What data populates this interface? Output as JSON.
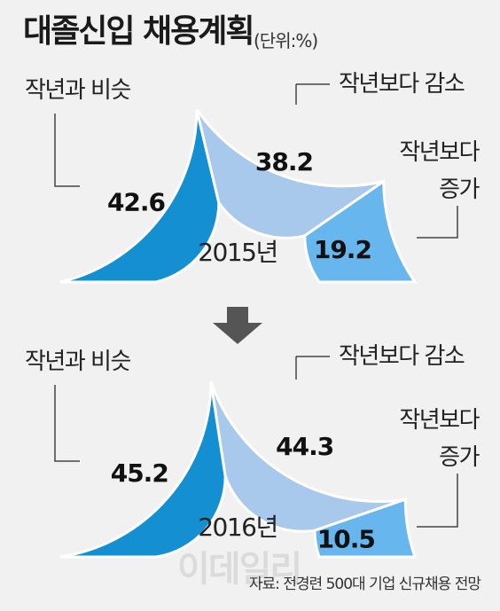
{
  "title": "대졸신입 채용계획",
  "unit": "(단위:%)",
  "colors": {
    "same": "#148fd2",
    "decrease": "#a9c9ec",
    "increase": "#67b7ee",
    "stroke": "#ffffff",
    "line": "#444444",
    "arrow": "#555555"
  },
  "arrow_icon": "down-arrow-icon",
  "chart_data": [
    {
      "type": "pie",
      "center_label": "2015년",
      "categories": [
        "작년과 비슷",
        "작년보다 감소",
        "작년보다 증가"
      ],
      "labels": [
        "작년과 비슷",
        "작년보다 감소",
        "작년보다\n증가"
      ],
      "values": [
        42.6,
        38.2,
        19.2
      ]
    },
    {
      "type": "pie",
      "center_label": "2016년",
      "categories": [
        "작년과 비슷",
        "작년보다 감소",
        "작년보다 증가"
      ],
      "labels": [
        "작년과 비슷",
        "작년보다 감소",
        "작년보다\n증가"
      ],
      "values": [
        45.2,
        44.3,
        10.5
      ]
    }
  ],
  "source": "자료: 전경련 500대 기업 신규채용 전망",
  "watermark": "이데일리"
}
